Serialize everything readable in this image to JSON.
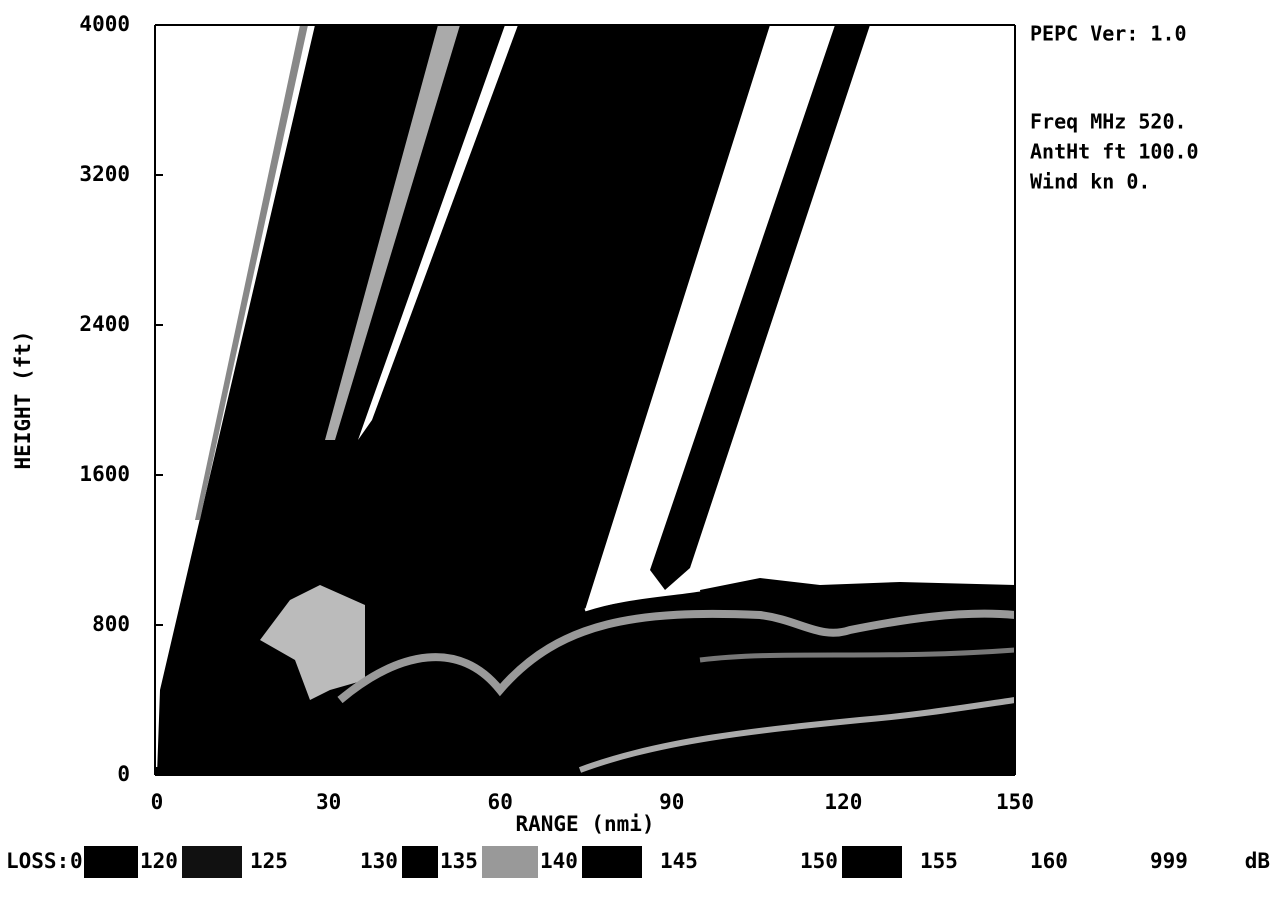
{
  "chart_data": {
    "type": "coverage",
    "xlabel": "RANGE (nmi)",
    "ylabel": "HEIGHT (ft)",
    "xlim": [
      0,
      150
    ],
    "xticks": [
      0,
      30,
      60,
      90,
      120,
      150
    ],
    "ylim": [
      0,
      4000
    ],
    "yticks": [
      0,
      800,
      1600,
      2400,
      3200,
      4000
    ],
    "info": [
      "PEPC Ver: 1.0",
      "Freq MHz   520.",
      "AntHt ft 100.0",
      "Wind kn 0."
    ],
    "legend": {
      "label": "LOSS:",
      "levels": [
        0,
        120,
        125,
        130,
        135,
        140,
        145,
        150,
        155,
        160,
        999
      ],
      "colors": [
        "#000",
        "#111",
        "#fff",
        "#000",
        "#999",
        "#000",
        "#fff",
        "#000",
        "#fff",
        "#fff"
      ],
      "unit": "dB"
    }
  }
}
